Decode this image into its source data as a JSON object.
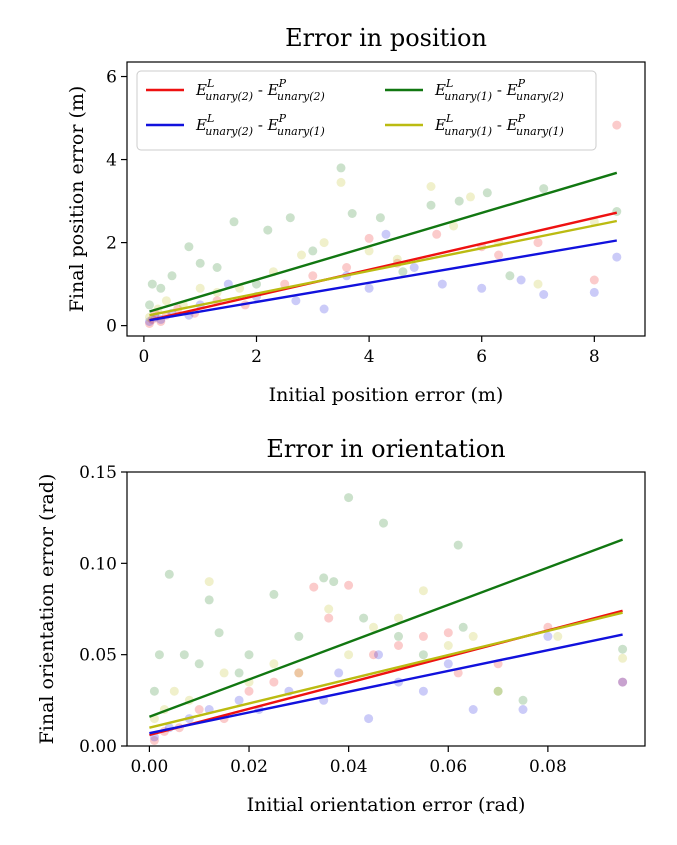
{
  "chart_data": [
    {
      "type": "scatter",
      "title": "Error in position",
      "xlabel": "Initial position error (m)",
      "ylabel": "Final position error (m)",
      "xlim": [
        -0.3,
        8.9
      ],
      "ylim": [
        -0.25,
        6.35
      ],
      "xticks": [
        0,
        2,
        4,
        6,
        8
      ],
      "yticks": [
        0,
        2,
        4,
        6
      ],
      "legend_position": "top",
      "series": [
        {
          "legend": {
            "base": "E",
            "sup1": "L",
            "sub1": "unary(2)",
            "sep": " - ",
            "sup2": "P",
            "sub2": "unary(2)"
          },
          "color": "#ee1111",
          "fit": [
            [
              0.1,
              0.13
            ],
            [
              8.4,
              2.72
            ]
          ],
          "points": [
            [
              0.1,
              0.05
            ],
            [
              0.15,
              0.15
            ],
            [
              0.2,
              0.3
            ],
            [
              0.3,
              0.1
            ],
            [
              0.4,
              0.25
            ],
            [
              0.6,
              0.4
            ],
            [
              0.9,
              0.3
            ],
            [
              1.3,
              0.6
            ],
            [
              1.8,
              0.5
            ],
            [
              2.5,
              1.0
            ],
            [
              3.6,
              1.4
            ],
            [
              4.0,
              2.1
            ],
            [
              4.5,
              1.5
            ],
            [
              5.2,
              2.2
            ],
            [
              6.0,
              1.9
            ],
            [
              7.0,
              2.0
            ],
            [
              8.0,
              1.1
            ],
            [
              8.4,
              4.83
            ],
            [
              6.3,
              1.7
            ],
            [
              3.0,
              1.2
            ]
          ]
        },
        {
          "legend": {
            "base": "E",
            "sup1": "L",
            "sub1": "unary(2)",
            "sep": " - ",
            "sup2": "P",
            "sub2": "unary(1)"
          },
          "color": "#1111dd",
          "fit": [
            [
              0.1,
              0.13
            ],
            [
              8.4,
              2.05
            ]
          ],
          "points": [
            [
              0.1,
              0.1
            ],
            [
              0.2,
              0.2
            ],
            [
              0.3,
              0.15
            ],
            [
              0.5,
              0.3
            ],
            [
              0.8,
              0.25
            ],
            [
              1.0,
              0.5
            ],
            [
              1.5,
              1.0
            ],
            [
              2.0,
              0.7
            ],
            [
              2.7,
              0.6
            ],
            [
              3.2,
              0.4
            ],
            [
              3.6,
              1.2
            ],
            [
              4.0,
              0.9
            ],
            [
              4.3,
              2.2
            ],
            [
              5.3,
              1.0
            ],
            [
              6.0,
              0.9
            ],
            [
              6.7,
              1.1
            ],
            [
              7.1,
              0.75
            ],
            [
              8.0,
              0.8
            ],
            [
              8.4,
              1.65
            ],
            [
              4.8,
              1.4
            ]
          ]
        },
        {
          "legend": {
            "base": "E",
            "sup1": "L",
            "sub1": "unary(1)",
            "sep": " - ",
            "sup2": "P",
            "sub2": "unary(2)"
          },
          "color": "#117711",
          "fit": [
            [
              0.1,
              0.34
            ],
            [
              8.4,
              3.68
            ]
          ],
          "points": [
            [
              0.1,
              0.5
            ],
            [
              0.15,
              1.0
            ],
            [
              0.3,
              0.9
            ],
            [
              0.5,
              1.2
            ],
            [
              0.8,
              1.9
            ],
            [
              1.0,
              1.5
            ],
            [
              1.3,
              1.4
            ],
            [
              1.6,
              2.5
            ],
            [
              2.2,
              2.3
            ],
            [
              2.6,
              2.6
            ],
            [
              3.0,
              1.8
            ],
            [
              3.5,
              3.8
            ],
            [
              3.7,
              2.7
            ],
            [
              4.2,
              2.6
            ],
            [
              5.1,
              2.9
            ],
            [
              5.6,
              3.0
            ],
            [
              6.1,
              3.2
            ],
            [
              7.1,
              3.3
            ],
            [
              8.4,
              2.75
            ],
            [
              6.5,
              1.2
            ],
            [
              4.6,
              1.3
            ],
            [
              2.0,
              1.0
            ]
          ]
        },
        {
          "legend": {
            "base": "E",
            "sup1": "L",
            "sub1": "unary(1)",
            "sep": " - ",
            "sup2": "P",
            "sub2": "unary(1)"
          },
          "color": "#bbbb11",
          "fit": [
            [
              0.1,
              0.25
            ],
            [
              8.4,
              2.52
            ]
          ],
          "points": [
            [
              0.1,
              0.2
            ],
            [
              0.25,
              0.4
            ],
            [
              0.4,
              0.6
            ],
            [
              0.7,
              0.5
            ],
            [
              1.0,
              0.9
            ],
            [
              1.3,
              0.8
            ],
            [
              1.7,
              0.9
            ],
            [
              2.3,
              1.3
            ],
            [
              2.8,
              1.7
            ],
            [
              3.5,
              3.45
            ],
            [
              4.0,
              1.8
            ],
            [
              4.5,
              1.6
            ],
            [
              5.1,
              3.35
            ],
            [
              5.8,
              3.1
            ],
            [
              6.3,
              2.0
            ],
            [
              7.0,
              1.0
            ],
            [
              8.0,
              2.5
            ],
            [
              3.2,
              2.0
            ],
            [
              5.5,
              2.4
            ]
          ]
        }
      ]
    },
    {
      "type": "scatter",
      "title": "Error in orientation",
      "xlabel": "Initial orientation error (rad)",
      "ylabel": "Final orientation error (rad)",
      "xlim": [
        -0.0045,
        0.0995
      ],
      "ylim": [
        0,
        0.15
      ],
      "xticks": [
        0.0,
        0.02,
        0.04,
        0.06,
        0.08
      ],
      "xtick_labels": [
        "0.00",
        "0.02",
        "0.04",
        "0.06",
        "0.08"
      ],
      "yticks": [
        0.0,
        0.05,
        0.1,
        0.15
      ],
      "ytick_labels": [
        "0.00",
        "0.05",
        "0.10",
        "0.15"
      ],
      "series": [
        {
          "color": "#ee1111",
          "fit": [
            [
              0.0,
              0.006
            ],
            [
              0.095,
              0.074
            ]
          ],
          "points": [
            [
              0.001,
              0.003
            ],
            [
              0.003,
              0.008
            ],
            [
              0.006,
              0.01
            ],
            [
              0.01,
              0.02
            ],
            [
              0.015,
              0.015
            ],
            [
              0.02,
              0.03
            ],
            [
              0.025,
              0.035
            ],
            [
              0.033,
              0.087
            ],
            [
              0.036,
              0.07
            ],
            [
              0.04,
              0.088
            ],
            [
              0.045,
              0.05
            ],
            [
              0.05,
              0.055
            ],
            [
              0.055,
              0.06
            ],
            [
              0.06,
              0.062
            ],
            [
              0.062,
              0.04
            ],
            [
              0.07,
              0.045
            ],
            [
              0.08,
              0.065
            ],
            [
              0.095,
              0.035
            ],
            [
              0.03,
              0.04
            ]
          ]
        },
        {
          "color": "#1111dd",
          "fit": [
            [
              0.0,
              0.007
            ],
            [
              0.095,
              0.061
            ]
          ],
          "points": [
            [
              0.001,
              0.005
            ],
            [
              0.004,
              0.01
            ],
            [
              0.008,
              0.015
            ],
            [
              0.012,
              0.02
            ],
            [
              0.018,
              0.025
            ],
            [
              0.022,
              0.02
            ],
            [
              0.028,
              0.03
            ],
            [
              0.035,
              0.025
            ],
            [
              0.038,
              0.04
            ],
            [
              0.044,
              0.015
            ],
            [
              0.046,
              0.05
            ],
            [
              0.05,
              0.035
            ],
            [
              0.055,
              0.03
            ],
            [
              0.06,
              0.045
            ],
            [
              0.065,
              0.02
            ],
            [
              0.075,
              0.02
            ],
            [
              0.08,
              0.06
            ],
            [
              0.095,
              0.035
            ]
          ]
        },
        {
          "color": "#117711",
          "fit": [
            [
              0.0,
              0.016
            ],
            [
              0.095,
              0.113
            ]
          ],
          "points": [
            [
              0.001,
              0.03
            ],
            [
              0.002,
              0.05
            ],
            [
              0.004,
              0.094
            ],
            [
              0.007,
              0.05
            ],
            [
              0.01,
              0.045
            ],
            [
              0.012,
              0.08
            ],
            [
              0.014,
              0.062
            ],
            [
              0.018,
              0.04
            ],
            [
              0.02,
              0.05
            ],
            [
              0.025,
              0.083
            ],
            [
              0.03,
              0.06
            ],
            [
              0.035,
              0.092
            ],
            [
              0.037,
              0.09
            ],
            [
              0.04,
              0.136
            ],
            [
              0.043,
              0.07
            ],
            [
              0.047,
              0.122
            ],
            [
              0.05,
              0.06
            ],
            [
              0.062,
              0.11
            ],
            [
              0.063,
              0.065
            ],
            [
              0.07,
              0.03
            ],
            [
              0.095,
              0.053
            ],
            [
              0.075,
              0.025
            ],
            [
              0.055,
              0.05
            ]
          ]
        },
        {
          "color": "#bbbb11",
          "fit": [
            [
              0.0,
              0.01
            ],
            [
              0.095,
              0.073
            ]
          ],
          "points": [
            [
              0.001,
              0.015
            ],
            [
              0.003,
              0.02
            ],
            [
              0.005,
              0.03
            ],
            [
              0.008,
              0.025
            ],
            [
              0.012,
              0.09
            ],
            [
              0.015,
              0.04
            ],
            [
              0.02,
              0.035
            ],
            [
              0.025,
              0.045
            ],
            [
              0.03,
              0.04
            ],
            [
              0.036,
              0.075
            ],
            [
              0.04,
              0.05
            ],
            [
              0.045,
              0.065
            ],
            [
              0.05,
              0.07
            ],
            [
              0.055,
              0.085
            ],
            [
              0.06,
              0.055
            ],
            [
              0.065,
              0.06
            ],
            [
              0.07,
              0.03
            ],
            [
              0.082,
              0.06
            ],
            [
              0.095,
              0.048
            ]
          ]
        }
      ]
    }
  ]
}
